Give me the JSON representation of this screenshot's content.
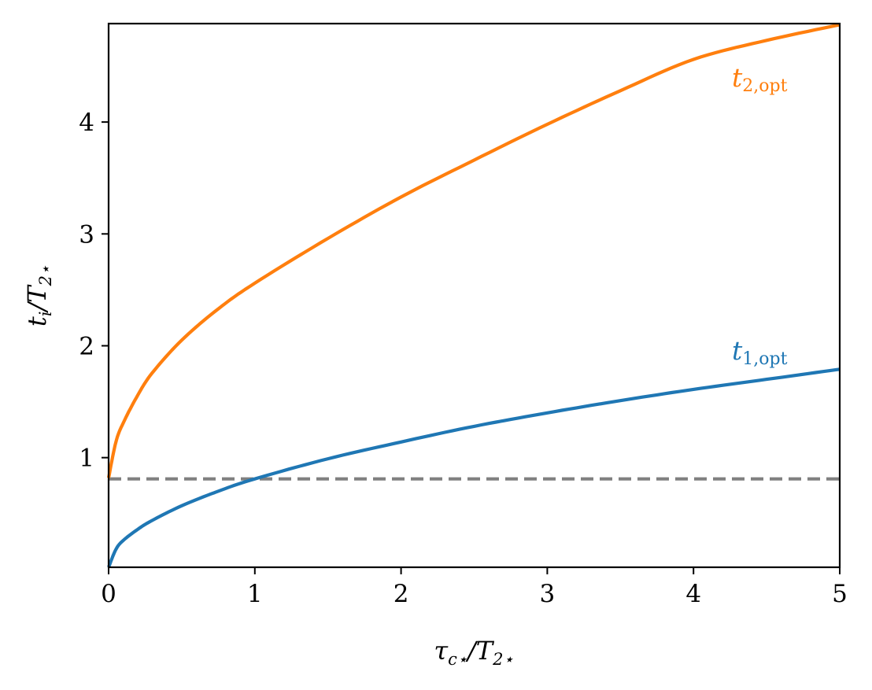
{
  "chart_data": {
    "type": "line",
    "xlabel": {
      "main": "τ",
      "sub1": "c⋆",
      "slash": "/T",
      "sub2": "2⋆"
    },
    "ylabel": {
      "main": "t",
      "sub1": "i",
      "slash": "/T",
      "sub2": "2⋆"
    },
    "xlim": [
      0,
      5
    ],
    "ylim": [
      0.02,
      4.88
    ],
    "xticks": [
      "0",
      "1",
      "2",
      "3",
      "4",
      "5"
    ],
    "yticks": [
      "1",
      "2",
      "3",
      "4"
    ],
    "grid": false,
    "series": [
      {
        "name_main": "t",
        "name_sub": "1,opt",
        "color": "#1f77b4",
        "x": [
          0,
          0.05,
          0.1,
          0.2,
          0.3,
          0.5,
          0.75,
          1.0,
          1.5,
          2.0,
          2.5,
          3.0,
          3.5,
          4.0,
          4.5,
          5.0
        ],
        "y": [
          0.02,
          0.18,
          0.26,
          0.36,
          0.44,
          0.57,
          0.7,
          0.81,
          0.99,
          1.14,
          1.28,
          1.4,
          1.51,
          1.61,
          1.7,
          1.79
        ]
      },
      {
        "name_main": "t",
        "name_sub": "2,opt",
        "color": "#ff7f0e",
        "x": [
          0,
          0.05,
          0.1,
          0.2,
          0.3,
          0.5,
          0.75,
          1.0,
          1.5,
          2.0,
          2.5,
          3.0,
          3.5,
          4.0,
          4.5,
          5.0
        ],
        "y": [
          0.82,
          1.14,
          1.31,
          1.56,
          1.76,
          2.05,
          2.33,
          2.56,
          2.96,
          3.33,
          3.66,
          3.98,
          4.28,
          4.56,
          4.73,
          4.87
        ]
      },
      {
        "name_main": "",
        "name_sub": "",
        "color": "#808080",
        "dashed": true,
        "x": [
          0,
          5
        ],
        "y": [
          0.81,
          0.81
        ]
      }
    ]
  }
}
